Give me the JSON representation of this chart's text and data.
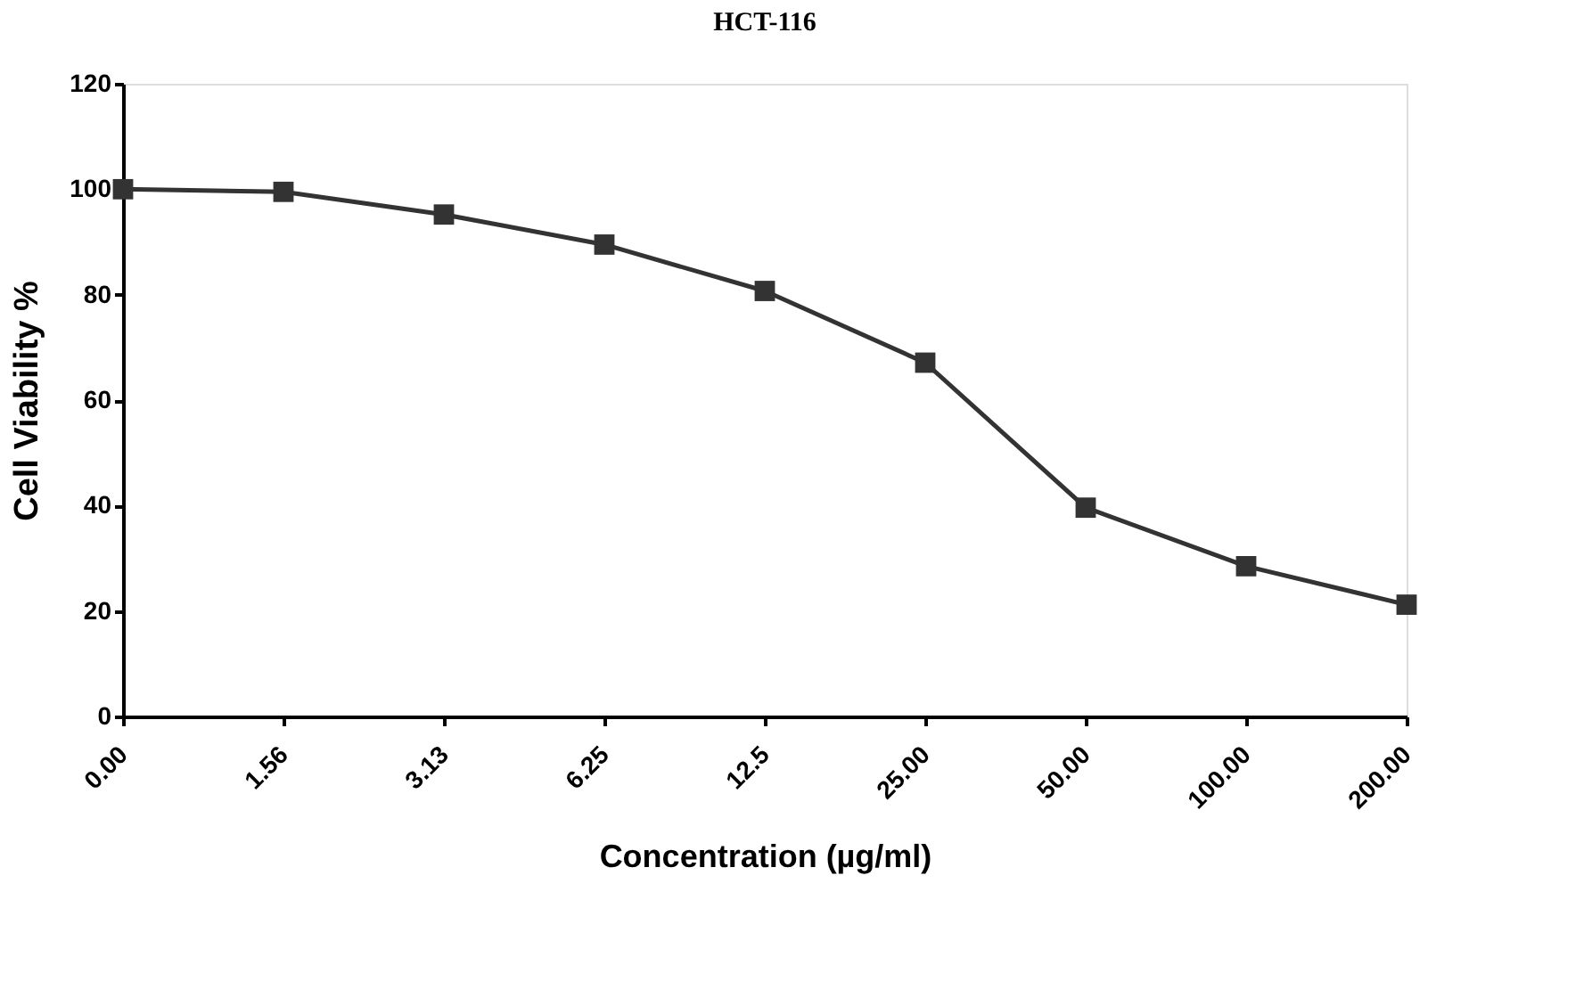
{
  "chart_data": {
    "type": "line",
    "title": "HCT-116",
    "xlabel": "Concentration  (µg/ml)",
    "ylabel": "Cell Viability %",
    "categories": [
      "0.00",
      "1.56",
      "3.13",
      "6.25",
      "12.5",
      "25.00",
      "50.00",
      "100.00",
      "200.00"
    ],
    "series": [
      {
        "color": "#333333",
        "values": [
          100,
          99.5,
          95.2,
          89.5,
          80.7,
          67.1,
          39.6,
          28.5,
          21.2
        ]
      }
    ],
    "ylim": [
      0,
      120
    ],
    "yticks": [
      0,
      20,
      40,
      60,
      80,
      100,
      120
    ],
    "grid": false,
    "legend": false,
    "marker": "square",
    "line_style": "solid"
  }
}
